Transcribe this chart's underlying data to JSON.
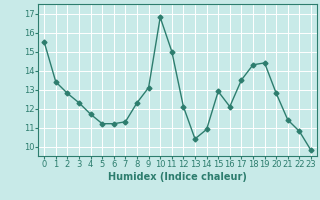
{
  "x": [
    0,
    1,
    2,
    3,
    4,
    5,
    6,
    7,
    8,
    9,
    10,
    11,
    12,
    13,
    14,
    15,
    16,
    17,
    18,
    19,
    20,
    21,
    22,
    23
  ],
  "y": [
    15.5,
    13.4,
    12.8,
    12.3,
    11.7,
    11.2,
    11.2,
    11.3,
    12.3,
    13.1,
    16.8,
    15.0,
    12.1,
    10.4,
    10.9,
    12.9,
    12.1,
    13.5,
    14.3,
    14.4,
    12.8,
    11.4,
    10.8,
    9.8
  ],
  "line_color": "#2d7d6e",
  "marker": "D",
  "marker_size": 2.5,
  "linewidth": 1.0,
  "xlabel": "Humidex (Indice chaleur)",
  "ylim": [
    9.5,
    17.5
  ],
  "xlim": [
    -0.5,
    23.5
  ],
  "yticks": [
    10,
    11,
    12,
    13,
    14,
    15,
    16,
    17
  ],
  "xticks": [
    0,
    1,
    2,
    3,
    4,
    5,
    6,
    7,
    8,
    9,
    10,
    11,
    12,
    13,
    14,
    15,
    16,
    17,
    18,
    19,
    20,
    21,
    22,
    23
  ],
  "bg_color": "#c8eae8",
  "grid_color": "#ffffff",
  "tick_color": "#2d7d6e",
  "label_color": "#2d7d6e",
  "font_size": 6,
  "xlabel_fontsize": 7
}
